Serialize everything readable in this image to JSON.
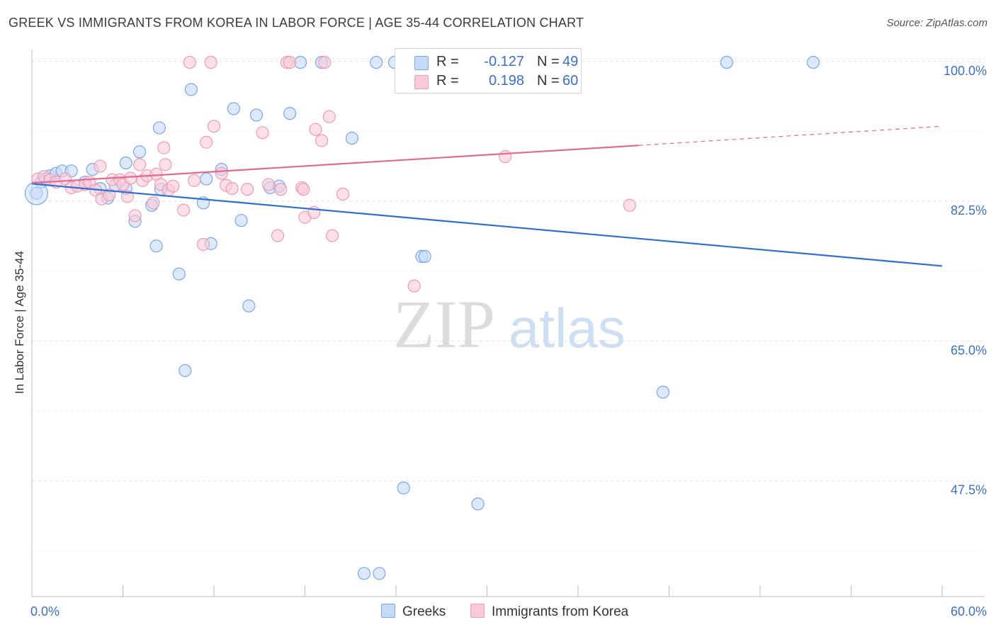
{
  "header": {
    "title": "GREEK VS IMMIGRANTS FROM KOREA IN LABOR FORCE | AGE 35-44 CORRELATION CHART",
    "source": "Source: ZipAtlas.com"
  },
  "watermark": {
    "zip": "ZIP",
    "atlas": "atlas"
  },
  "legend": {
    "rows": [
      {
        "r_label": "R =",
        "r_value": "-0.127",
        "n_label": "N =",
        "n_value": "49",
        "color": "#7aa7e8",
        "fill": "#c6daf7"
      },
      {
        "r_label": "R =",
        "r_value": "0.198",
        "n_label": "N =",
        "n_value": "60",
        "color": "#ef9ab4",
        "fill": "#f9cbd9"
      }
    ]
  },
  "bottom_legend": {
    "greeks": "Greeks",
    "korea": "Immigrants from Korea"
  },
  "axes": {
    "ylabel": "In Labor Force | Age 35-44",
    "x_min_label": "0.0%",
    "x_max_label": "60.0%",
    "y_ticks": [
      "100.0%",
      "82.5%",
      "65.0%",
      "47.5%"
    ]
  },
  "chart_data": {
    "type": "scatter",
    "xlabel": "",
    "ylabel": "In Labor Force | Age 35-44",
    "xlim": [
      0,
      60
    ],
    "ylim": [
      33,
      101.5
    ],
    "y_tick_values": [
      100,
      82.5,
      65,
      47.5
    ],
    "grid": true,
    "series": [
      {
        "name": "Greeks",
        "color": "#7aa7e8",
        "fill": "#c6daf7",
        "line_color": "#2f6fd0",
        "trend": {
          "x0": 0,
          "y0": 84.7,
          "x1": 60,
          "y1": 74.4
        },
        "points": [
          [
            0.3,
            83.5
          ],
          [
            0.6,
            84.9
          ],
          [
            0.9,
            85.3
          ],
          [
            1.2,
            85.7
          ],
          [
            1.6,
            86.0
          ],
          [
            2.0,
            86.3
          ],
          [
            2.6,
            86.3
          ],
          [
            3.5,
            84.9
          ],
          [
            4.0,
            86.5
          ],
          [
            4.5,
            84.1
          ],
          [
            5.0,
            82.9
          ],
          [
            5.5,
            84.5
          ],
          [
            6.2,
            84.1
          ],
          [
            6.2,
            87.3
          ],
          [
            6.8,
            80.0
          ],
          [
            7.1,
            88.7
          ],
          [
            7.9,
            82.0
          ],
          [
            8.2,
            76.9
          ],
          [
            8.4,
            91.7
          ],
          [
            8.5,
            84.0
          ],
          [
            9.7,
            73.4
          ],
          [
            10.1,
            61.3
          ],
          [
            10.5,
            96.5
          ],
          [
            11.3,
            82.3
          ],
          [
            11.5,
            85.3
          ],
          [
            11.8,
            77.2
          ],
          [
            12.5,
            86.5
          ],
          [
            13.3,
            94.1
          ],
          [
            13.8,
            80.1
          ],
          [
            14.3,
            69.4
          ],
          [
            14.8,
            93.3
          ],
          [
            15.7,
            84.2
          ],
          [
            16.3,
            84.4
          ],
          [
            17.0,
            93.5
          ],
          [
            17.7,
            99.9
          ],
          [
            19.1,
            99.9
          ],
          [
            21.1,
            90.4
          ],
          [
            21.9,
            35.9
          ],
          [
            22.7,
            99.9
          ],
          [
            22.9,
            35.9
          ],
          [
            23.9,
            99.9
          ],
          [
            24.5,
            46.6
          ],
          [
            25.0,
            99.9
          ],
          [
            25.7,
            75.6
          ],
          [
            25.9,
            75.6
          ],
          [
            29.4,
            44.6
          ],
          [
            41.6,
            58.6
          ],
          [
            45.8,
            99.9
          ],
          [
            51.5,
            99.9
          ]
        ]
      },
      {
        "name": "Immigrants from Korea",
        "color": "#ef9ab4",
        "fill": "#f9cbd9",
        "line_color": "#e06a93",
        "trend": {
          "x0": 0,
          "y0": 84.8,
          "x1": 40,
          "y1": 89.5,
          "dash_x1": 60,
          "dash_y1": 91.9
        },
        "points": [
          [
            0.4,
            85.3
          ],
          [
            0.8,
            85.6
          ],
          [
            1.2,
            85.2
          ],
          [
            1.6,
            84.9
          ],
          [
            2.2,
            85.3
          ],
          [
            2.6,
            84.2
          ],
          [
            3.0,
            84.4
          ],
          [
            3.5,
            84.6
          ],
          [
            3.8,
            84.9
          ],
          [
            4.2,
            83.9
          ],
          [
            4.5,
            86.9
          ],
          [
            4.6,
            82.8
          ],
          [
            5.1,
            83.3
          ],
          [
            5.3,
            85.2
          ],
          [
            5.8,
            85.2
          ],
          [
            6.0,
            84.6
          ],
          [
            6.3,
            83.1
          ],
          [
            6.5,
            85.4
          ],
          [
            6.8,
            80.7
          ],
          [
            7.1,
            87.1
          ],
          [
            7.3,
            85.1
          ],
          [
            7.6,
            85.7
          ],
          [
            8.0,
            82.3
          ],
          [
            8.2,
            85.9
          ],
          [
            8.5,
            84.6
          ],
          [
            8.7,
            89.2
          ],
          [
            8.8,
            87.1
          ],
          [
            9.0,
            83.9
          ],
          [
            9.3,
            84.4
          ],
          [
            10.0,
            81.4
          ],
          [
            10.4,
            99.9
          ],
          [
            10.7,
            85.1
          ],
          [
            11.3,
            77.1
          ],
          [
            11.5,
            89.9
          ],
          [
            11.8,
            99.9
          ],
          [
            12.0,
            91.9
          ],
          [
            12.5,
            86.0
          ],
          [
            12.8,
            84.5
          ],
          [
            13.2,
            84.1
          ],
          [
            14.2,
            84.0
          ],
          [
            15.2,
            91.1
          ],
          [
            15.6,
            84.6
          ],
          [
            16.2,
            78.2
          ],
          [
            16.4,
            84.0
          ],
          [
            16.8,
            99.9
          ],
          [
            17.0,
            99.9
          ],
          [
            17.8,
            84.2
          ],
          [
            17.9,
            84.0
          ],
          [
            18.0,
            80.5
          ],
          [
            18.6,
            81.1
          ],
          [
            18.7,
            91.5
          ],
          [
            19.1,
            90.1
          ],
          [
            19.3,
            99.9
          ],
          [
            19.6,
            93.1
          ],
          [
            19.8,
            78.2
          ],
          [
            20.5,
            83.4
          ],
          [
            25.2,
            71.9
          ],
          [
            26.2,
            99.9
          ],
          [
            31.2,
            88.1
          ],
          [
            39.4,
            82.0
          ]
        ]
      }
    ]
  }
}
